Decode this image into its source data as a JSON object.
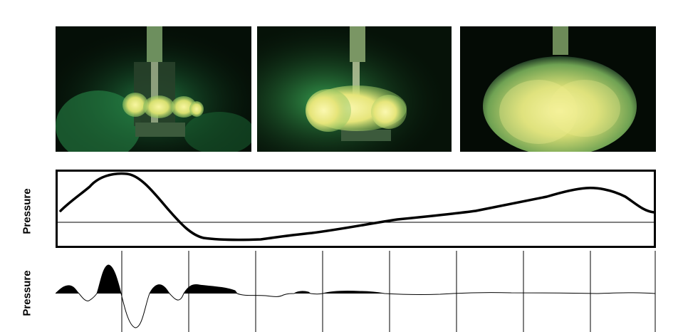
{
  "labels": {
    "top_axis": "Pressure",
    "bottom_axis": "Pressure"
  },
  "photos": [
    {
      "icon": "explosion-photo-small-flame"
    },
    {
      "icon": "explosion-photo-growing-flame"
    },
    {
      "icon": "explosion-photo-fireball"
    }
  ],
  "colors": {
    "background": "#ffffff",
    "trace": "#000000",
    "photo_dark": "#050f07",
    "flame_green": "#2fa55a",
    "flame_yellow": "#f4f27a"
  }
}
